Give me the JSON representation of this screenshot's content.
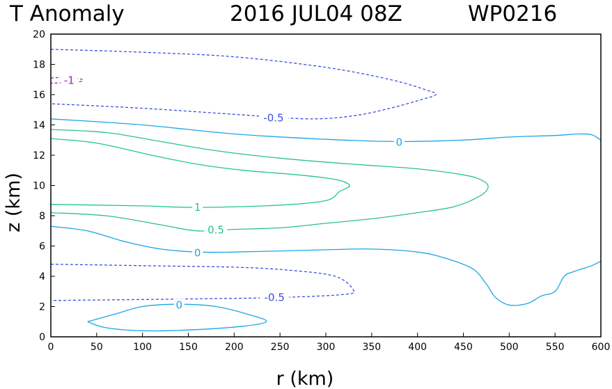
{
  "chart_data": {
    "type": "contour",
    "title": "T Anomaly",
    "timestamp": "2016 JUL04 08Z",
    "storm_id": "WP0216",
    "xlabel": "r (km)",
    "ylabel": "z (km)",
    "xlim": [
      0,
      600
    ],
    "ylim": [
      0,
      20
    ],
    "xticks": [
      0,
      50,
      100,
      150,
      200,
      250,
      300,
      350,
      400,
      450,
      500,
      550,
      600
    ],
    "yticks": [
      0,
      2,
      4,
      6,
      8,
      10,
      12,
      14,
      16,
      18,
      20
    ],
    "colors": {
      "neg1": "#9c2ab4",
      "neg05": "#3a4ee0",
      "zero": "#1aa6e6",
      "pos05": "#2ec08a",
      "pos1": "#22c49a"
    },
    "contours": [
      {
        "level": -1,
        "label": "-1",
        "style": "dashed",
        "color_key": "neg1",
        "points": [
          [
            0,
            17.1
          ],
          [
            17,
            17.15
          ],
          [
            31,
            17.05
          ],
          [
            35,
            16.95
          ],
          [
            31,
            16.85
          ],
          [
            17,
            16.8
          ],
          [
            0,
            16.75
          ]
        ],
        "label_at": [
          20,
          16.95
        ]
      },
      {
        "level": -0.5,
        "label": "-0.5",
        "style": "dashed",
        "color_key": "neg05",
        "points": [
          [
            0,
            19.0
          ],
          [
            100,
            18.8
          ],
          [
            200,
            18.5
          ],
          [
            300,
            17.8
          ],
          [
            370,
            17.0
          ],
          [
            410,
            16.3
          ],
          [
            420,
            16.0
          ],
          [
            400,
            15.6
          ],
          [
            370,
            15.1
          ],
          [
            330,
            14.6
          ],
          [
            280,
            14.4
          ],
          [
            200,
            14.7
          ],
          [
            100,
            15.1
          ],
          [
            0,
            15.4
          ]
        ],
        "label_at": [
          243,
          14.45
        ]
      },
      {
        "level": -0.5,
        "label": "-0.5",
        "style": "dashed",
        "color_key": "neg05",
        "points": [
          [
            0,
            4.8
          ],
          [
            100,
            4.7
          ],
          [
            200,
            4.6
          ],
          [
            260,
            4.4
          ],
          [
            310,
            4.0
          ],
          [
            330,
            3.1
          ],
          [
            320,
            2.8
          ],
          [
            250,
            2.6
          ],
          [
            150,
            2.5
          ],
          [
            0,
            2.4
          ]
        ],
        "label_at": [
          244,
          2.6
        ]
      },
      {
        "level": 0,
        "label": "0",
        "style": "solid",
        "color_key": "zero",
        "points": [
          [
            0,
            14.4
          ],
          [
            100,
            14.0
          ],
          [
            200,
            13.4
          ],
          [
            300,
            13.05
          ],
          [
            380,
            12.9
          ],
          [
            450,
            13.0
          ],
          [
            500,
            13.2
          ],
          [
            550,
            13.3
          ],
          [
            575,
            13.4
          ],
          [
            590,
            13.35
          ],
          [
            600,
            13.0
          ]
        ],
        "label_at": [
          380,
          12.85
        ]
      },
      {
        "level": 0,
        "label": "0",
        "style": "solid",
        "color_key": "zero",
        "points": [
          [
            0,
            7.3
          ],
          [
            40,
            7.0
          ],
          [
            80,
            6.3
          ],
          [
            120,
            5.8
          ],
          [
            160,
            5.6
          ],
          [
            200,
            5.6
          ],
          [
            300,
            5.75
          ],
          [
            350,
            5.8
          ],
          [
            400,
            5.6
          ],
          [
            430,
            5.2
          ],
          [
            460,
            4.5
          ],
          [
            475,
            3.5
          ],
          [
            485,
            2.6
          ],
          [
            500,
            2.1
          ],
          [
            520,
            2.2
          ],
          [
            535,
            2.7
          ],
          [
            550,
            3.0
          ],
          [
            560,
            4.0
          ],
          [
            570,
            4.3
          ],
          [
            590,
            4.7
          ],
          [
            600,
            5.0
          ]
        ],
        "label_at": [
          160,
          5.55
        ]
      },
      {
        "level": 0,
        "label": "0",
        "style": "solid",
        "color_key": "zero",
        "points": [
          [
            40,
            1.0
          ],
          [
            70,
            1.5
          ],
          [
            100,
            2.0
          ],
          [
            140,
            2.15
          ],
          [
            180,
            2.0
          ],
          [
            220,
            1.4
          ],
          [
            235,
            1.0
          ],
          [
            210,
            0.7
          ],
          [
            150,
            0.45
          ],
          [
            100,
            0.4
          ],
          [
            60,
            0.6
          ],
          [
            40,
            1.0
          ]
        ],
        "label_at": [
          140,
          2.1
        ]
      },
      {
        "level": 0.5,
        "label": "0.5",
        "style": "solid",
        "color_key": "pos05",
        "points": [
          [
            0,
            13.7
          ],
          [
            60,
            13.5
          ],
          [
            120,
            12.9
          ],
          [
            180,
            12.3
          ],
          [
            250,
            11.8
          ],
          [
            330,
            11.4
          ],
          [
            400,
            11.1
          ],
          [
            450,
            10.7
          ],
          [
            470,
            10.35
          ],
          [
            477,
            9.9
          ],
          [
            468,
            9.3
          ],
          [
            440,
            8.6
          ],
          [
            400,
            8.2
          ],
          [
            350,
            7.8
          ],
          [
            300,
            7.5
          ],
          [
            250,
            7.2
          ],
          [
            200,
            7.1
          ],
          [
            160,
            7.0
          ],
          [
            120,
            7.4
          ],
          [
            60,
            8.0
          ],
          [
            0,
            8.2
          ]
        ],
        "label_at": [
          180,
          7.05
        ]
      },
      {
        "level": 1,
        "label": "1",
        "style": "solid",
        "color_key": "pos1",
        "points": [
          [
            0,
            13.1
          ],
          [
            50,
            12.8
          ],
          [
            110,
            12.0
          ],
          [
            160,
            11.4
          ],
          [
            210,
            11.0
          ],
          [
            270,
            10.7
          ],
          [
            310,
            10.4
          ],
          [
            326,
            10.0
          ],
          [
            315,
            9.6
          ],
          [
            300,
            9.0
          ],
          [
            250,
            8.7
          ],
          [
            160,
            8.55
          ],
          [
            100,
            8.65
          ],
          [
            0,
            8.75
          ]
        ],
        "label_at": [
          160,
          8.55
        ]
      }
    ]
  }
}
